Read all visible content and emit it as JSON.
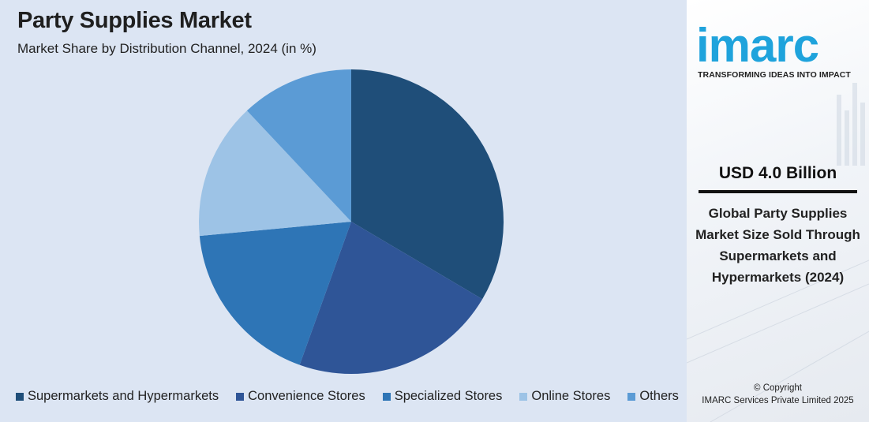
{
  "header": {
    "title": "Party Supplies Market",
    "subtitle": "Market Share by Distribution Channel, 2024 (in %)"
  },
  "chart_data": {
    "type": "pie",
    "title": "Party Supplies Market",
    "subtitle": "Market Share by Distribution Channel, 2024 (in %)",
    "categories": [
      "Supermarkets and Hypermarkets",
      "Convenience Stores",
      "Specialized Stores",
      "Online Stores",
      "Others"
    ],
    "values": [
      33.5,
      22.0,
      18.0,
      14.5,
      12.0
    ],
    "colors": [
      "#1f4e79",
      "#2f5597",
      "#2e75b6",
      "#9dc3e6",
      "#5b9bd5"
    ],
    "legend_position": "bottom",
    "start_angle": "12 o'clock, clockwise"
  },
  "legend": [
    {
      "label": "Supermarkets and Hypermarkets",
      "color": "#1f4e79"
    },
    {
      "label": "Convenience Stores",
      "color": "#2f5597"
    },
    {
      "label": "Specialized Stores",
      "color": "#2e75b6"
    },
    {
      "label": "Online Stores",
      "color": "#9dc3e6"
    },
    {
      "label": "Others",
      "color": "#5b9bd5"
    }
  ],
  "brand": {
    "logo_text": "imarc",
    "tagline": "TRANSFORMING IDEAS INTO IMPACT",
    "color": "#1fa3dc"
  },
  "highlight": {
    "value": "USD 4.0 Billion",
    "description": "Global Party Supplies Market Size Sold Through Supermarkets and Hypermarkets (2024)"
  },
  "footer": {
    "copyright_line1": "© Copyright",
    "copyright_line2": "IMARC Services Private Limited 2025"
  }
}
